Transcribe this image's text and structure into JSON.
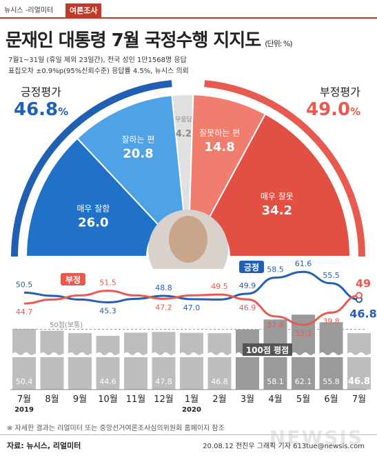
{
  "header": {
    "brand": "뉴시스 -리얼미터",
    "badge": "여론조사"
  },
  "title": "문재인 대통령 7월 국정수행 지지도",
  "unit": "(단위: %)",
  "subtitle1": "7월1~31일 (휴일 제외 23일간), 전국 성인 1만1568명 응답",
  "subtitle2": "표집오차 ±0.9%p(95%신뢰수준) 응답률 4.5%, 뉴시스 의뢰",
  "positive": {
    "label": "긍정평가",
    "value": "46.8",
    "pct": "%",
    "color": "#1f5fb4"
  },
  "negative": {
    "label": "부정평가",
    "value": "49.0",
    "pct": "%",
    "color": "#e85a4f"
  },
  "donut": [
    {
      "label": "매우 잘함",
      "value": "26.0",
      "color": "#1f72c7"
    },
    {
      "label": "잘하는 편",
      "value": "20.8",
      "color": "#4da3e6"
    },
    {
      "label": "무응답",
      "value": "4.2",
      "color": "#e0e0e0"
    },
    {
      "label": "잘못하는 편",
      "value": "14.8",
      "color": "#f07d6e"
    },
    {
      "label": "매우 잘못",
      "value": "34.2",
      "color": "#e24f43"
    }
  ],
  "chart_data": {
    "type": "line",
    "categories": [
      "7월",
      "8월",
      "9월",
      "10월",
      "11월",
      "12월",
      "1월",
      "2월",
      "3월",
      "4월",
      "5월",
      "6월",
      "7월"
    ],
    "year_labels": [
      "2019",
      "",
      "",
      "",
      "",
      "",
      "2020",
      "",
      "",
      "",
      "",
      "",
      ""
    ],
    "series": [
      {
        "name": "긍정",
        "color": "#1f5fb4",
        "values": [
          50.5,
          48.8,
          46.8,
          45.3,
          47.2,
          48.8,
          47.0,
          46.8,
          49.9,
          58.5,
          61.6,
          55.5,
          46.8
        ],
        "labels": [
          "50.5",
          "",
          "",
          "45.3",
          "",
          "48.8",
          "47.0",
          "",
          "49.9",
          "58.5",
          "61.6",
          "55.5",
          "46.8"
        ]
      },
      {
        "name": "부정",
        "color": "#e85a4f",
        "values": [
          44.7,
          46.8,
          49.0,
          51.5,
          49.0,
          47.2,
          49.0,
          49.5,
          46.9,
          37.8,
          33.3,
          39.8,
          49.0
        ],
        "labels": [
          "44.7",
          "",
          "",
          "51.5",
          "",
          "47.2",
          "",
          "49.5",
          "46.9",
          "37.8",
          "33.3",
          "39.8",
          "49"
        ]
      }
    ],
    "bars": {
      "values": [
        50.4,
        48.8,
        46.8,
        44.6,
        47.2,
        47.8,
        47.0,
        46.8,
        49.9,
        58.1,
        62.1,
        55.8,
        46.8
      ],
      "labels": [
        "50.4",
        "",
        "",
        "44.6",
        "",
        "47.8",
        "",
        "46.8",
        "",
        "58.1",
        "62.1",
        "55.8",
        "46.8"
      ]
    },
    "reference_label": "50점(보통)",
    "average_label": "100점 평점"
  },
  "note": "※ 자세한 결과는 리얼미터 또는 중앙선거여론조사심의위원회 홈페이지 참조",
  "source": "자료: 뉴시스, 리얼미터",
  "credit": "20.08.12 전진우 그래픽 기자 613tue@newsis.com",
  "watermark": "NEWSIS"
}
